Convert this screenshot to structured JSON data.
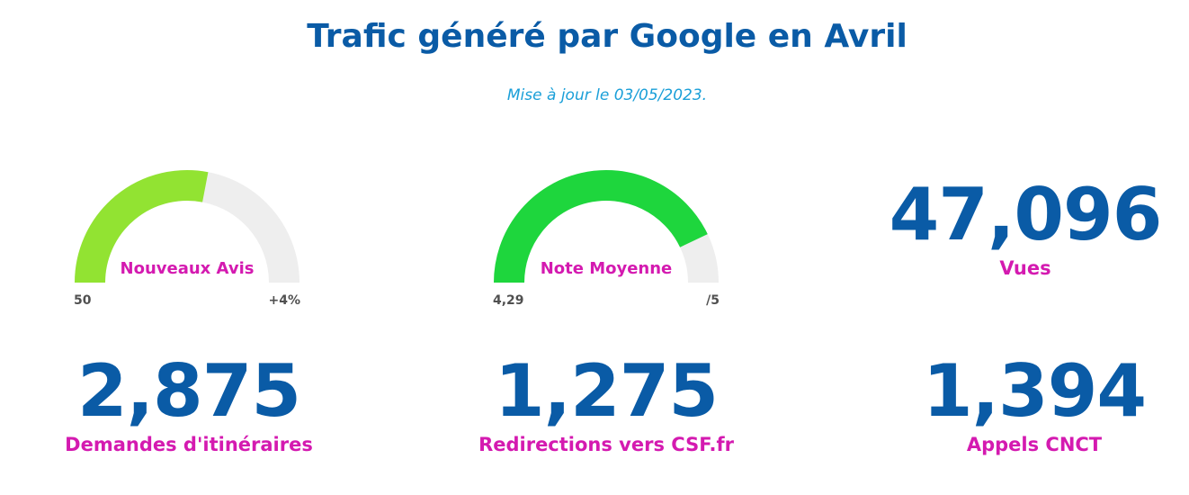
{
  "header": {
    "title": "Trafic généré par Google en Avril",
    "subtitle": "Mise à jour le 03/05/2023."
  },
  "gauges": [
    {
      "label": "Nouveaux Avis",
      "min_label": "50",
      "max_label": "+4%",
      "fill_fraction": 0.56,
      "color": "#92e332",
      "track_color": "#eeeeee"
    },
    {
      "label": "Note Moyenne",
      "min_label": "4,29",
      "max_label": "/5",
      "fill_fraction": 0.858,
      "color": "#1ed63d",
      "track_color": "#eeeeee"
    }
  ],
  "stats": {
    "vues": {
      "value": "47,096",
      "label": "Vues"
    },
    "itineraires": {
      "value": "2,875",
      "label": "Demandes d'itinéraires"
    },
    "redirections": {
      "value": "1,275",
      "label": "Redirections vers CSF.fr"
    },
    "appels": {
      "value": "1,394",
      "label": "Appels CNCT"
    }
  },
  "colors": {
    "primary": "#0a5ba6",
    "accent": "#d41ab0",
    "subtitle": "#1a9fd8"
  }
}
